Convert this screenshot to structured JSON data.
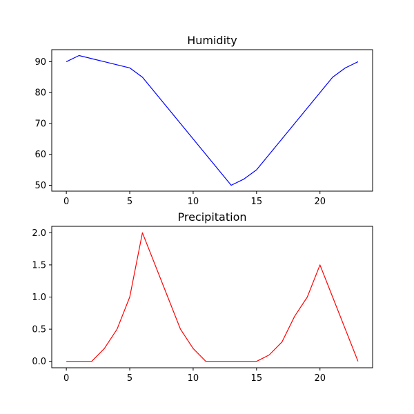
{
  "chart_data": [
    {
      "type": "line",
      "title": "Humidity",
      "xlabel": "",
      "ylabel": "",
      "xlim": [
        -1.15,
        24.15
      ],
      "ylim": [
        48.1,
        93.9
      ],
      "xticks": [
        0,
        5,
        10,
        15,
        20
      ],
      "yticks": [
        50,
        60,
        70,
        80,
        90
      ],
      "grid": false,
      "series": [
        {
          "color": "#0000ff",
          "x": [
            0,
            1,
            2,
            3,
            4,
            5,
            6,
            7,
            8,
            9,
            10,
            11,
            12,
            13,
            14,
            15,
            16,
            17,
            18,
            19,
            20,
            21,
            22,
            23
          ],
          "y": [
            90,
            92,
            91,
            90,
            89,
            88,
            85,
            80,
            75,
            70,
            65,
            60,
            55,
            50,
            52,
            55,
            60,
            65,
            70,
            75,
            80,
            85,
            88,
            90
          ]
        }
      ]
    },
    {
      "type": "line",
      "title": "Precipitation",
      "xlabel": "",
      "ylabel": "",
      "xlim": [
        -1.15,
        24.15
      ],
      "ylim": [
        -0.1,
        2.1
      ],
      "xticks": [
        0,
        5,
        10,
        15,
        20
      ],
      "yticks": [
        0.0,
        0.5,
        1.0,
        1.5,
        2.0
      ],
      "ytick_decimals": 1,
      "grid": false,
      "series": [
        {
          "color": "#ff0000",
          "x": [
            0,
            1,
            2,
            3,
            4,
            5,
            6,
            7,
            8,
            9,
            10,
            11,
            12,
            13,
            14,
            15,
            16,
            17,
            18,
            19,
            20,
            21,
            22,
            23
          ],
          "y": [
            0,
            0,
            0,
            0.2,
            0.5,
            1.0,
            2.0,
            1.5,
            1.0,
            0.5,
            0.2,
            0,
            0,
            0,
            0,
            0,
            0.1,
            0.3,
            0.7,
            1.0,
            1.5,
            1.0,
            0.5,
            0
          ]
        }
      ]
    }
  ]
}
